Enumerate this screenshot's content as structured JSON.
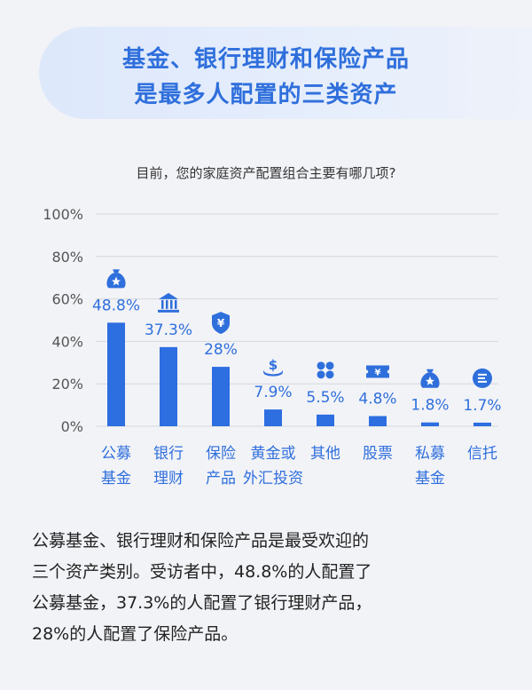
{
  "header": {
    "title_line1": "基金、银行理财和保险产品",
    "title_line2": "是最多人配置的三类资产"
  },
  "question": "目前，您的家庭资产配置组合主要有哪几项?",
  "colors": {
    "accent": "#2f6fdc",
    "bar": "#2d6ee0",
    "grid": "#d6d8de"
  },
  "chart_data": {
    "type": "bar",
    "title": "",
    "xlabel": "",
    "ylabel": "",
    "ylim": [
      0,
      100
    ],
    "yticks": [
      "0%",
      "20%",
      "40%",
      "60%",
      "80%",
      "100%"
    ],
    "grid": true,
    "categories": [
      [
        "公募",
        "基金"
      ],
      [
        "银行",
        "理财"
      ],
      [
        "保险",
        "产品"
      ],
      [
        "黄金或",
        "外汇投资"
      ],
      [
        "其他"
      ],
      [
        "股票"
      ],
      [
        "私募",
        "基金"
      ],
      [
        "信托"
      ]
    ],
    "values": [
      48.8,
      37.3,
      28,
      7.9,
      5.5,
      4.8,
      1.8,
      1.7
    ],
    "data_labels": [
      "48.8%",
      "37.3%",
      "28%",
      "7.9%",
      "5.5%",
      "4.8%",
      "1.8%",
      "1.7%"
    ],
    "icons": [
      "money-bag-icon",
      "bank-icon",
      "shield-yen-icon",
      "dollar-coin-icon",
      "grid-dots-icon",
      "ticket-yen-icon",
      "money-bag-icon",
      "coin-stack-icon"
    ]
  },
  "summary": {
    "lines": [
      "公募基金、银行理财和保险产品是最受欢迎的",
      "三个资产类别。受访者中，48.8%的人配置了",
      "公募基金，37.3%的人配置了银行理财产品，",
      "28%的人配置了保险产品。"
    ]
  }
}
